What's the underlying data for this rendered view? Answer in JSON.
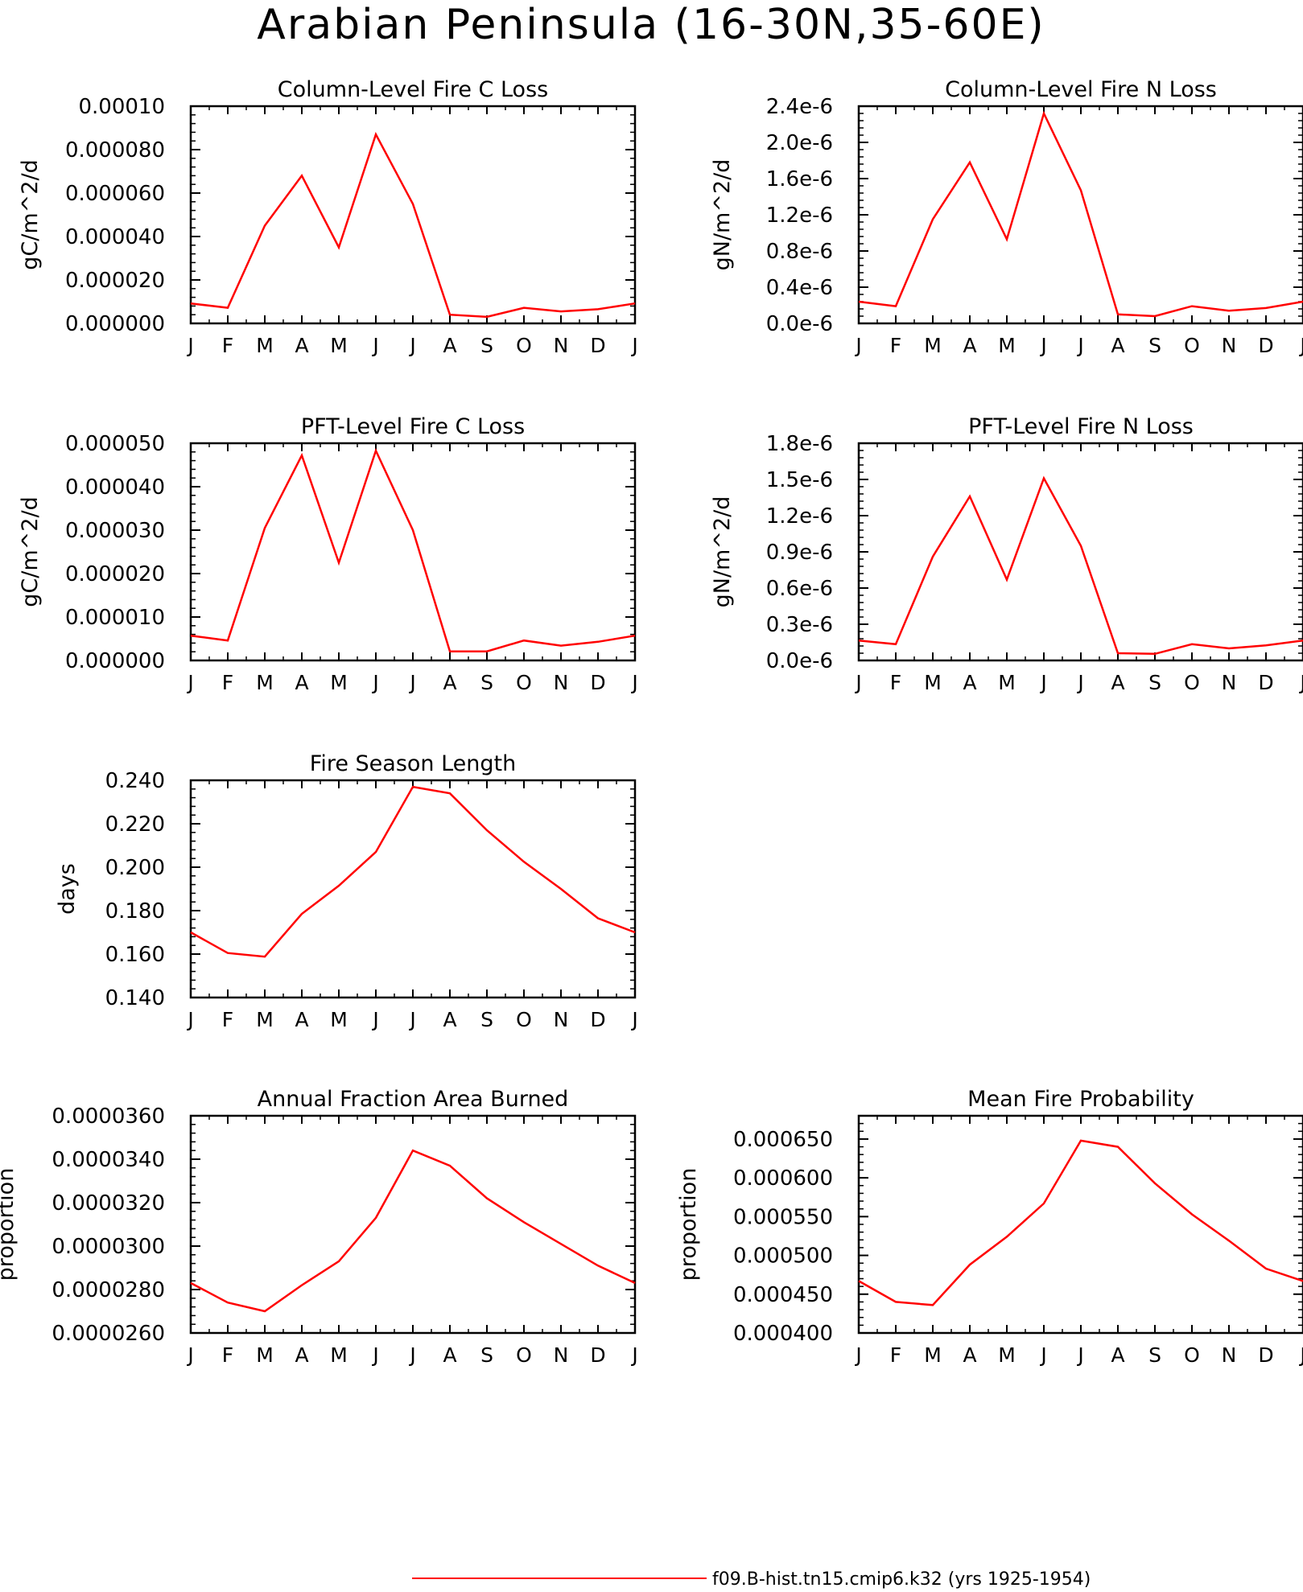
{
  "figure": {
    "title": "Arabian Peninsula (16-30N,35-60E)",
    "legend": {
      "label": "f09.B-hist.tn15.cmip6.k32 (yrs 1925-1954)",
      "color": "#ff0000"
    }
  },
  "chart_data": [
    {
      "type": "line",
      "title": "Column-Level Fire C Loss",
      "ylabel": "gC/m^2/d",
      "categories": [
        "J",
        "F",
        "M",
        "A",
        "M",
        "J",
        "J",
        "A",
        "S",
        "O",
        "N",
        "D",
        "J"
      ],
      "yticks": [
        "0.000000",
        "0.000020",
        "0.000040",
        "0.000060",
        "0.000080",
        "0.00010"
      ],
      "ylim": [
        0,
        0.0001
      ],
      "series": [
        {
          "color": "#ff0000",
          "values": [
            9.2e-06,
            7.2e-06,
            4.5e-05,
            6.8e-05,
            3.5e-05,
            8.7e-05,
            5.5e-05,
            4e-06,
            3e-06,
            7.2e-06,
            5.5e-06,
            6.5e-06,
            9.2e-06
          ]
        }
      ]
    },
    {
      "type": "line",
      "title": "Column-Level Fire N Loss",
      "ylabel": "gN/m^2/d",
      "categories": [
        "J",
        "F",
        "M",
        "A",
        "M",
        "J",
        "J",
        "A",
        "S",
        "O",
        "N",
        "D",
        "J"
      ],
      "yticks": [
        "0.0e-6",
        "0.4e-6",
        "0.8e-6",
        "1.2e-6",
        "1.6e-6",
        "2.0e-6",
        "2.4e-6"
      ],
      "ylim": [
        0,
        2.4e-06
      ],
      "series": [
        {
          "color": "#ff0000",
          "values": [
            2.4e-07,
            1.9e-07,
            1.15e-06,
            1.78e-06,
            9.3e-07,
            2.32e-06,
            1.47e-06,
            1e-07,
            8e-08,
            1.9e-07,
            1.4e-07,
            1.7e-07,
            2.4e-07
          ]
        }
      ]
    },
    {
      "type": "line",
      "title": "PFT-Level Fire C Loss",
      "ylabel": "gC/m^2/d",
      "categories": [
        "J",
        "F",
        "M",
        "A",
        "M",
        "J",
        "J",
        "A",
        "S",
        "O",
        "N",
        "D",
        "J"
      ],
      "yticks": [
        "0.000000",
        "0.000010",
        "0.000020",
        "0.000030",
        "0.000040",
        "0.000050"
      ],
      "ylim": [
        0,
        5e-05
      ],
      "series": [
        {
          "color": "#ff0000",
          "values": [
            5.7e-06,
            4.6e-06,
            3.05e-05,
            4.72e-05,
            2.25e-05,
            4.83e-05,
            3e-05,
            2.1e-06,
            2.1e-06,
            4.6e-06,
            3.4e-06,
            4.3e-06,
            5.7e-06
          ]
        }
      ]
    },
    {
      "type": "line",
      "title": "PFT-Level Fire N Loss",
      "ylabel": "gN/m^2/d",
      "categories": [
        "J",
        "F",
        "M",
        "A",
        "M",
        "J",
        "J",
        "A",
        "S",
        "O",
        "N",
        "D",
        "J"
      ],
      "yticks": [
        "0.0e-6",
        "0.3e-6",
        "0.6e-6",
        "0.9e-6",
        "1.2e-6",
        "1.5e-6",
        "1.8e-6"
      ],
      "ylim": [
        0,
        1.8e-06
      ],
      "series": [
        {
          "color": "#ff0000",
          "values": [
            1.65e-07,
            1.35e-07,
            8.6e-07,
            1.36e-06,
            6.7e-07,
            1.51e-06,
            9.5e-07,
            6e-08,
            5.5e-08,
            1.35e-07,
            1e-07,
            1.25e-07,
            1.65e-07
          ]
        }
      ]
    },
    {
      "type": "line",
      "title": "Fire Season Length",
      "ylabel": "days",
      "categories": [
        "J",
        "F",
        "M",
        "A",
        "M",
        "J",
        "J",
        "A",
        "S",
        "O",
        "N",
        "D",
        "J"
      ],
      "yticks": [
        "0.140",
        "0.160",
        "0.180",
        "0.200",
        "0.220",
        "0.240"
      ],
      "ylim": [
        0.14,
        0.24
      ],
      "series": [
        {
          "color": "#ff0000",
          "values": [
            0.17,
            0.1605,
            0.1588,
            0.1785,
            0.1915,
            0.207,
            0.237,
            0.234,
            0.217,
            0.2025,
            0.19,
            0.1765,
            0.17
          ]
        }
      ]
    },
    {
      "type": "line",
      "title": "Annual Fraction Area Burned",
      "ylabel": "proportion",
      "categories": [
        "J",
        "F",
        "M",
        "A",
        "M",
        "J",
        "J",
        "A",
        "S",
        "O",
        "N",
        "D",
        "J"
      ],
      "yticks": [
        "0.0000260",
        "0.0000280",
        "0.0000300",
        "0.0000320",
        "0.0000340",
        "0.0000360"
      ],
      "ylim": [
        2.6e-05,
        3.6e-05
      ],
      "series": [
        {
          "color": "#ff0000",
          "values": [
            2.83e-05,
            2.74e-05,
            2.7e-05,
            2.82e-05,
            2.93e-05,
            3.13e-05,
            3.44e-05,
            3.37e-05,
            3.22e-05,
            3.11e-05,
            3.01e-05,
            2.91e-05,
            2.83e-05
          ]
        }
      ]
    },
    {
      "type": "line",
      "title": "Mean Fire Probability",
      "ylabel": "proportion",
      "categories": [
        "J",
        "F",
        "M",
        "A",
        "M",
        "J",
        "J",
        "A",
        "S",
        "O",
        "N",
        "D",
        "J"
      ],
      "yticks": [
        "0.000400",
        "0.000450",
        "0.000500",
        "0.000550",
        "0.000600",
        "0.000650"
      ],
      "ylim": [
        0.0004,
        0.00068
      ],
      "series": [
        {
          "color": "#ff0000",
          "values": [
            0.000467,
            0.00044,
            0.000436,
            0.000488,
            0.000524,
            0.000567,
            0.000648,
            0.00064,
            0.000593,
            0.000553,
            0.000519,
            0.000483,
            0.000467
          ]
        }
      ]
    }
  ]
}
